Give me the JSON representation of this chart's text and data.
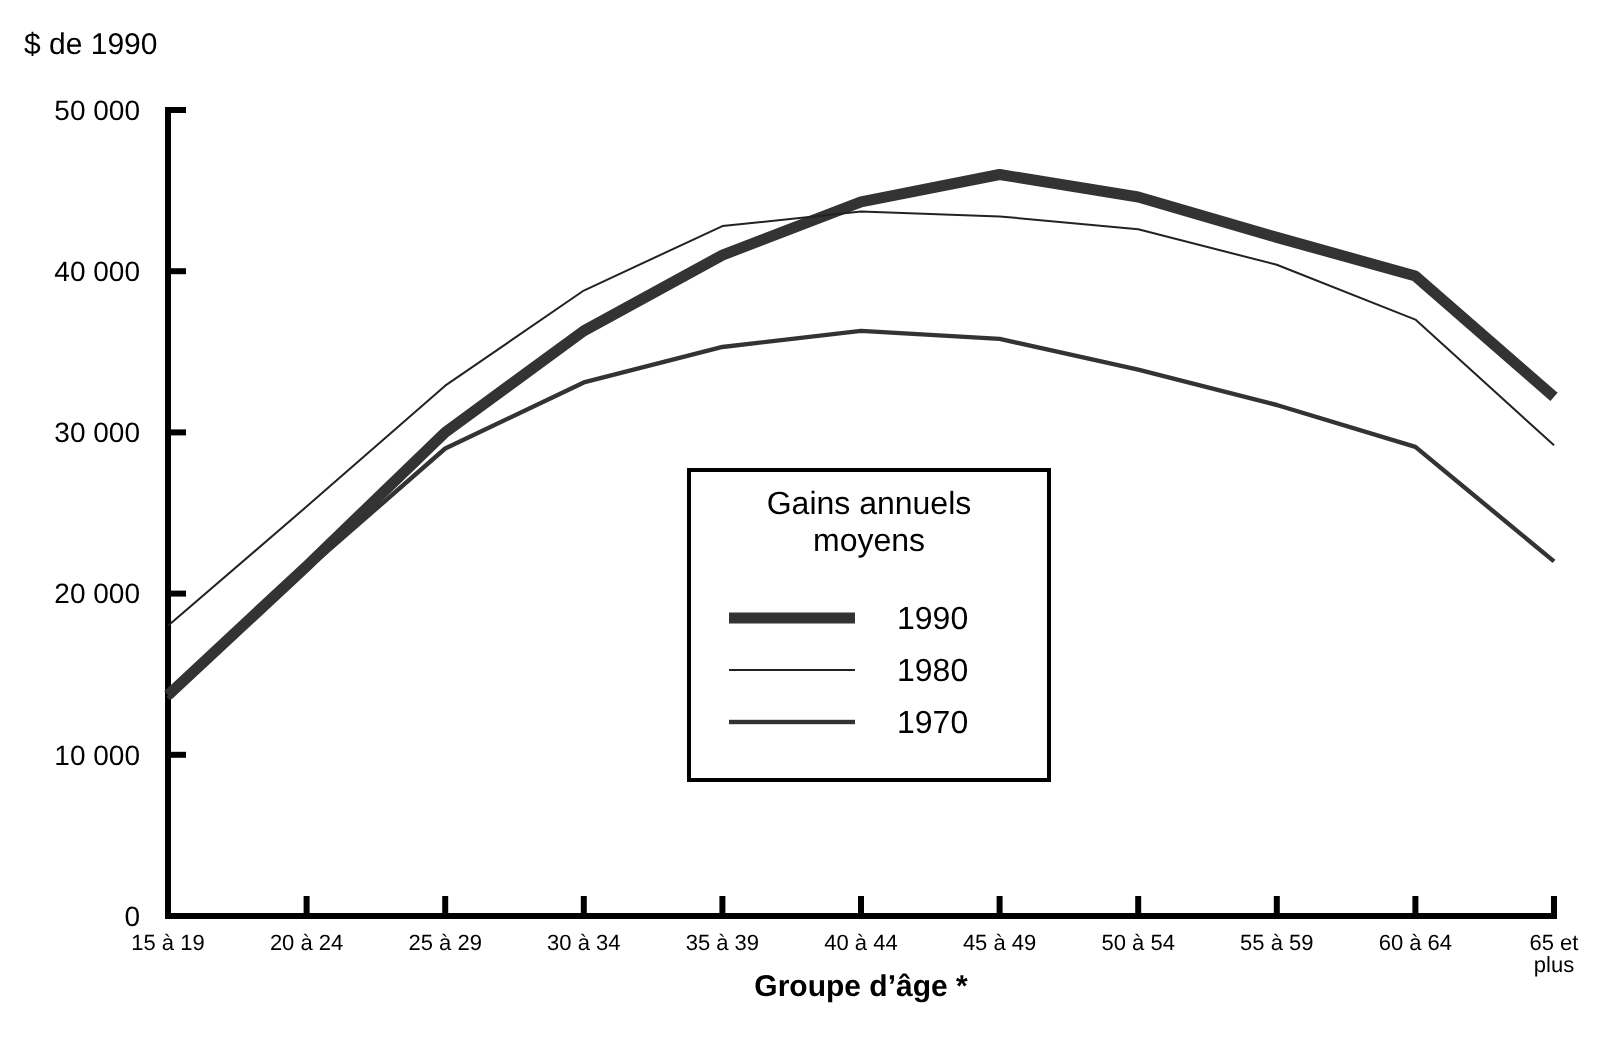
{
  "chart_data": {
    "type": "line",
    "ylabel": "$ de 1990",
    "xlabel": "Groupe d’âge *",
    "legend_title": "Gains annuels moyens",
    "legend": "center",
    "grid": false,
    "marker": "none",
    "line_style": "solid",
    "categories": [
      "15 à 19",
      "20 à 24",
      "25 à 29",
      "30 à 34",
      "35 à 39",
      "40 à 44",
      "45 à 49",
      "50 à 54",
      "55 à 59",
      "60 à 64",
      "65 et plus"
    ],
    "ylim": [
      0,
      50000
    ],
    "yticks": [
      0,
      {
        "value": 10000,
        "label": "10 000"
      },
      {
        "value": 20000,
        "label": "20 000"
      },
      {
        "value": 30000,
        "label": "30 000"
      },
      {
        "value": 40000,
        "label": "40 000"
      },
      {
        "value": 50000,
        "label": "50 000"
      }
    ],
    "series": [
      {
        "name": "1990",
        "color": "#333333",
        "values": [
          13700,
          21700,
          30000,
          36300,
          41000,
          44300,
          46000,
          44600,
          42100,
          39700,
          32200
        ]
      },
      {
        "name": "1980",
        "color": "#222222",
        "values": [
          18000,
          25400,
          32900,
          38800,
          42800,
          43700,
          43400,
          42600,
          40400,
          37000,
          29200
        ]
      },
      {
        "name": "1970",
        "color": "#333333",
        "values": [
          13500,
          21500,
          29000,
          33100,
          35300,
          36300,
          35800,
          33900,
          31700,
          29100,
          22000
        ]
      }
    ]
  }
}
